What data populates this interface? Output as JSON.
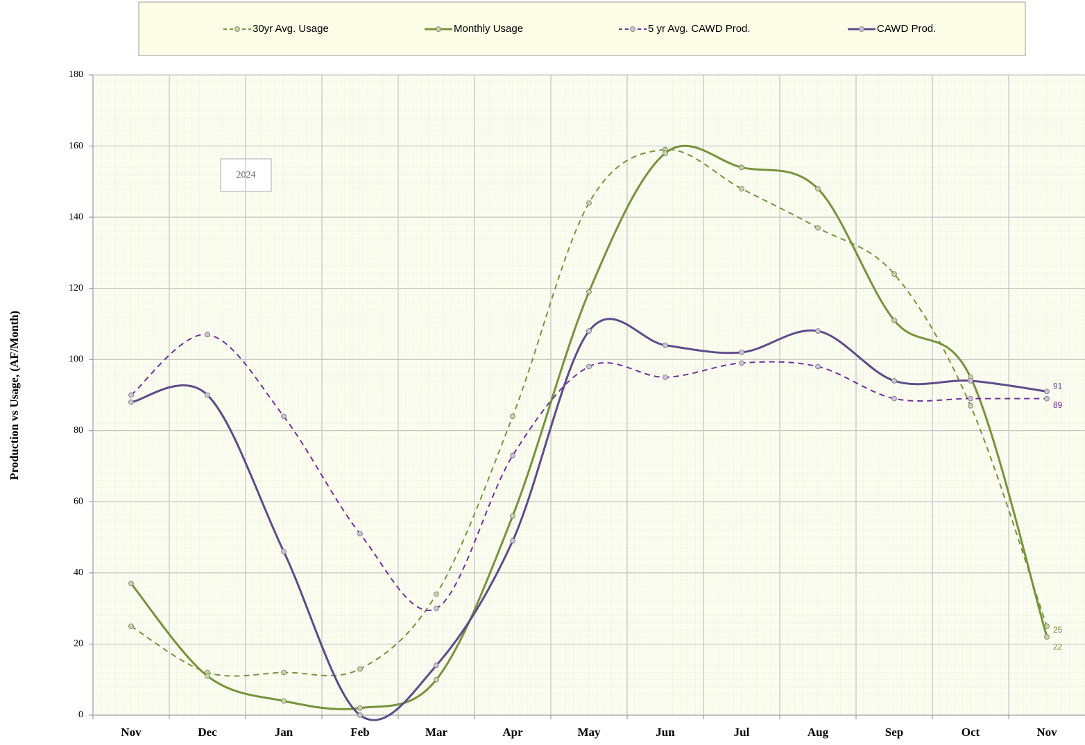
{
  "chart_data": {
    "type": "line",
    "y_label": "Production  vs  Usage, (AF/Month)",
    "annotation": "2024",
    "categories": [
      "Nov",
      "Dec",
      "Jan",
      "Feb",
      "Mar",
      "Apr",
      "May",
      "Jun",
      "Jul",
      "Aug",
      "Sep",
      "Oct",
      "Nov"
    ],
    "series": [
      {
        "name": "30yr Avg. Usage",
        "color": "#77933c",
        "marker_fill": "#c3d69b",
        "dashed": true,
        "values": [
          25,
          12,
          12,
          13,
          34,
          84,
          144,
          159,
          148,
          137,
          124,
          87,
          25
        ]
      },
      {
        "name": "Monthly Usage",
        "color": "#77933c",
        "marker_fill": "#c3d69b",
        "dashed": false,
        "values": [
          37,
          11,
          4,
          2,
          10,
          56,
          119,
          158,
          154,
          148,
          111,
          95,
          22
        ]
      },
      {
        "name": "5 yr Avg. CAWD Prod.",
        "color": "#7030a0",
        "marker_fill": "#ccc0da",
        "dashed": true,
        "values": [
          90,
          107,
          84,
          51,
          30,
          73,
          98,
          95,
          99,
          98,
          89,
          89,
          89
        ]
      },
      {
        "name": "CAWD Prod.",
        "color": "#5f4b8b",
        "marker_fill": "#ccc0da",
        "dashed": false,
        "values": [
          88,
          90,
          46,
          0,
          14,
          49,
          108,
          104,
          102,
          108,
          94,
          94,
          91
        ]
      }
    ],
    "ylim": [
      0,
      180
    ],
    "yticks": [
      0,
      20,
      40,
      60,
      80,
      100,
      120,
      140,
      160,
      180
    ],
    "grid": true,
    "smooth": true,
    "legend": "top"
  }
}
